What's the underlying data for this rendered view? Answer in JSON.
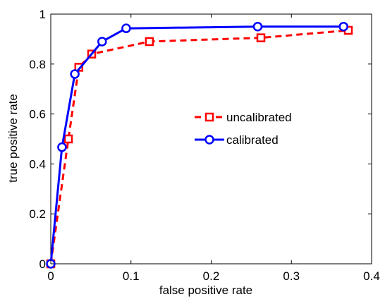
{
  "chart_data": {
    "type": "line",
    "title": "",
    "xlabel": "false positive rate",
    "ylabel": "true positive rate",
    "xlim": [
      0,
      0.4
    ],
    "ylim": [
      0,
      1
    ],
    "xticks": [
      "0",
      "0.1",
      "0.2",
      "0.3",
      "0.4"
    ],
    "yticks": [
      "0",
      "0.2",
      "0.4",
      "0.6",
      "0.8",
      "1"
    ],
    "grid": false,
    "legend_position": "center-right",
    "series": [
      {
        "name": "uncalibrated",
        "color": "#ff0000",
        "line_style": "dashed",
        "marker": "square",
        "points": [
          [
            0,
            0
          ],
          [
            0.022,
            0.5
          ],
          [
            0.035,
            0.787
          ],
          [
            0.051,
            0.84
          ],
          [
            0.123,
            0.89
          ],
          [
            0.262,
            0.905
          ],
          [
            0.371,
            0.935
          ]
        ]
      },
      {
        "name": "calibrated",
        "color": "#0000ff",
        "line_style": "solid",
        "marker": "circle",
        "points": [
          [
            0,
            0
          ],
          [
            0.014,
            0.467
          ],
          [
            0.03,
            0.76
          ],
          [
            0.064,
            0.89
          ],
          [
            0.094,
            0.943
          ],
          [
            0.258,
            0.95
          ],
          [
            0.365,
            0.95
          ]
        ]
      }
    ]
  }
}
